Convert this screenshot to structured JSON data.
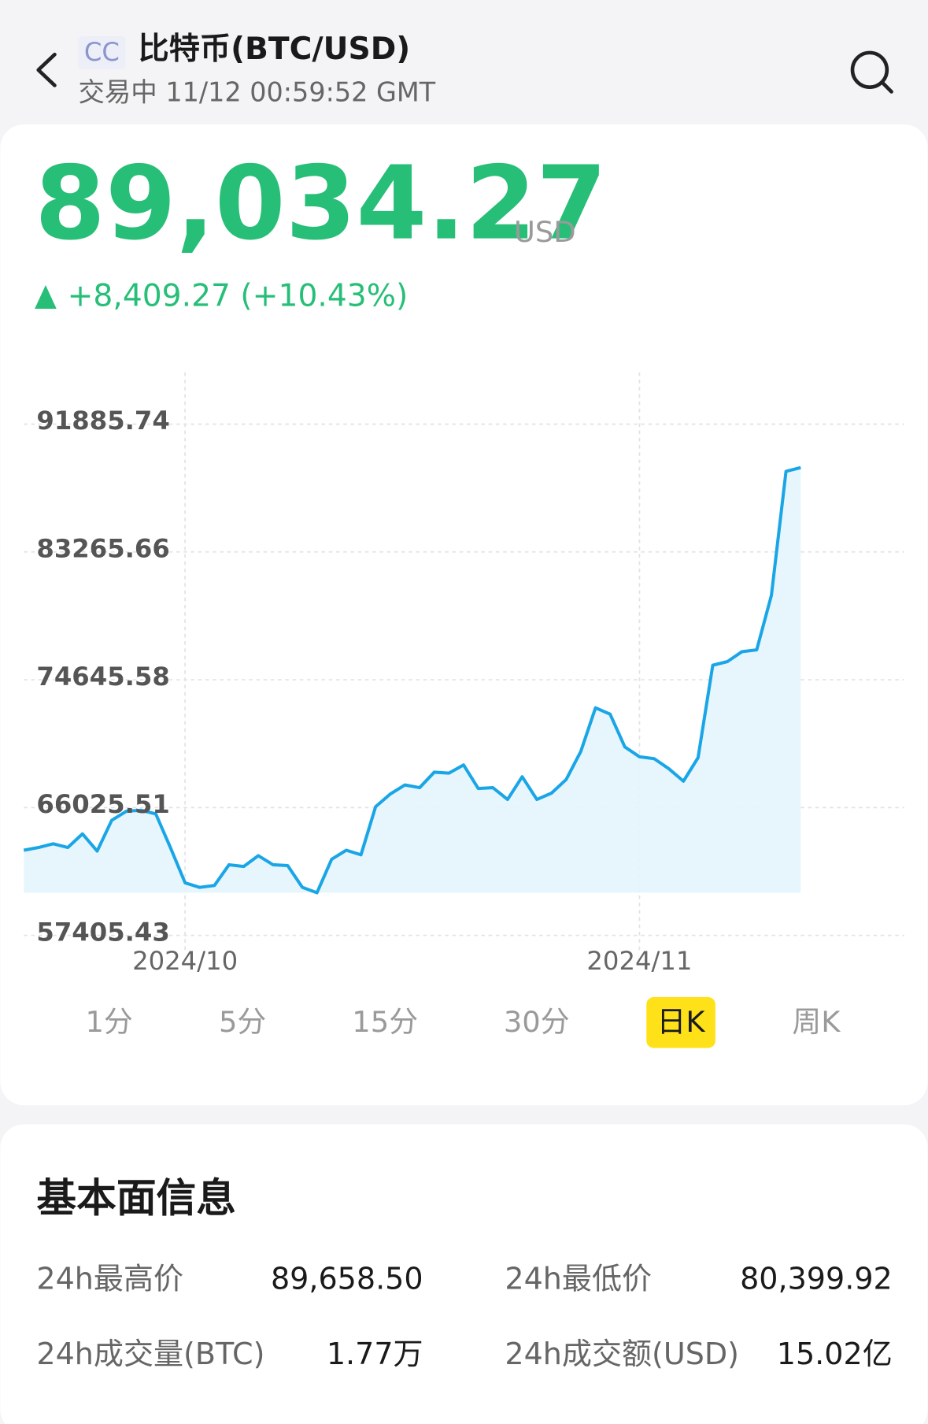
{
  "header": {
    "badge": "CC",
    "title": "比特币(BTC/USD)",
    "status": "交易中 11/12 00:59:52 GMT"
  },
  "quote": {
    "price": "89,034.27",
    "currency": "USD",
    "change": "+8,409.27 (+10.43%)"
  },
  "chart_data": {
    "type": "line",
    "color": "#1aa6e6",
    "categories": [
      null,
      null,
      null,
      null,
      null,
      null,
      null,
      null,
      null,
      null,
      null,
      "2024/10",
      null,
      null,
      null,
      null,
      null,
      null,
      null,
      null,
      null,
      null,
      null,
      null,
      null,
      null,
      null,
      null,
      null,
      null,
      null,
      null,
      null,
      null,
      null,
      null,
      null,
      null,
      null,
      null,
      null,
      null,
      "2024/11",
      null,
      null,
      null,
      null,
      null,
      null,
      null,
      null,
      null,
      null,
      null
    ],
    "values": [
      63030,
      63210,
      63460,
      63210,
      64130,
      62970,
      65050,
      65660,
      65720,
      65480,
      63210,
      60830,
      60520,
      60650,
      62050,
      61930,
      62660,
      62050,
      61990,
      60520,
      60160,
      62420,
      63030,
      62720,
      65960,
      66820,
      67430,
      67250,
      68290,
      68230,
      68780,
      67190,
      67250,
      66450,
      67980,
      66450,
      66880,
      67800,
      69690,
      72630,
      72200,
      70000,
      69330,
      69200,
      68530,
      67680,
      69270,
      75500,
      75750,
      76420,
      76540,
      80210,
      88580,
      88830
    ],
    "ylim": [
      57405.43,
      91885.74
    ],
    "yticks": [
      57405.43,
      66025.51,
      74645.58,
      83265.66,
      91885.74
    ],
    "grid": true
  },
  "tabs": {
    "items": [
      "1分",
      "5分",
      "15分",
      "30分",
      "日K",
      "周K"
    ],
    "active": 4
  },
  "fundamentals": {
    "title": "基本面信息",
    "items": [
      {
        "label": "24h最高价",
        "value": "89,658.50"
      },
      {
        "label": "24h最低价",
        "value": "80,399.92"
      },
      {
        "label": "24h成交量(BTC)",
        "value": "1.77万"
      },
      {
        "label": "24h成交额(USD)",
        "value": "15.02亿"
      }
    ]
  }
}
